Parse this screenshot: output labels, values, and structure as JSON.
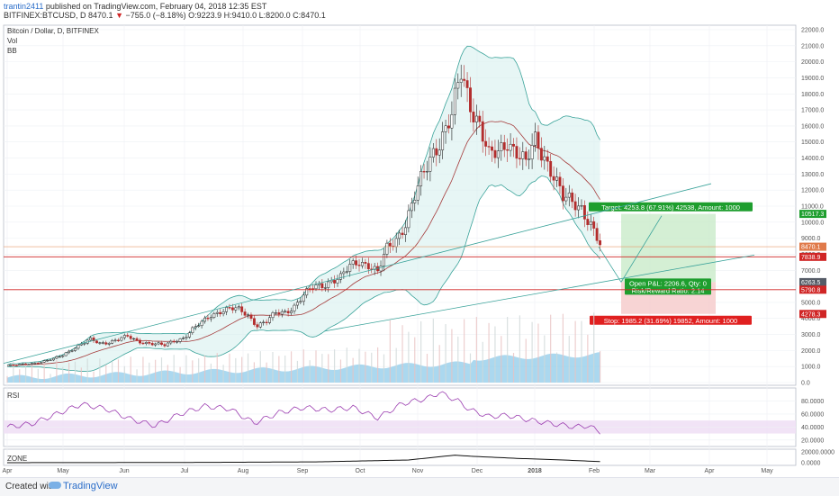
{
  "header": {
    "user": "trantin2411",
    "published": "published on TradingView.com, February 04, 2018 12:35 EST",
    "symbol": "BITFINEX:BTCUSD, D",
    "last": "8470.1",
    "arrow": "▼",
    "change": "−755.0 (−8.18%)",
    "ohlc": "O:9223.9 H:9410.0 L:8200.0 C:8470.1"
  },
  "legend": {
    "title": "Bitcoin / Dollar, D, BITFINEX",
    "vol": "Vol",
    "bb": "BB"
  },
  "footer": {
    "created": "Created with",
    "brand": "TradingView"
  },
  "colors": {
    "up": "#1e1e1e",
    "down": "#b32d2d",
    "bb_fill": "#d7f0ee",
    "bb_line": "#3aa39a",
    "ma": "#a53b3b",
    "rsi": "#9b3db0",
    "volume": "#88c8e8"
  },
  "chart_data": [
    {
      "type": "line",
      "title": "Bitcoin / Dollar, D, BITFINEX",
      "x_tick_labels": [
        "Apr",
        "May",
        "Jun",
        "Jul",
        "Aug",
        "Sep",
        "Oct",
        "Nov",
        "Dec",
        "2018",
        "Feb",
        "Mar",
        "Apr",
        "May"
      ],
      "y_tick_labels": [
        "0.0",
        "1000.0",
        "2000.0",
        "3000.0",
        "4000.0",
        "5000.0",
        "6000.0",
        "7000.0",
        "8000.0",
        "9000.0",
        "10000.0",
        "11000.0",
        "12000.0",
        "13000.0",
        "14000.0",
        "15000.0",
        "16000.0",
        "17000.0",
        "18000.0",
        "19000.0",
        "20000.0",
        "21000.0",
        "22000.0"
      ],
      "ylim": [
        0,
        22000
      ],
      "series": [
        {
          "values": [
            [
              0,
              1050
            ],
            [
              3,
              1080
            ],
            [
              6,
              1150
            ],
            [
              9,
              1230
            ],
            [
              12,
              1330
            ],
            [
              15,
              1460
            ],
            [
              18,
              1720
            ],
            [
              21,
              2100
            ],
            [
              24,
              2400
            ],
            [
              27,
              2650
            ],
            [
              30,
              2450
            ],
            [
              33,
              2550
            ],
            [
              36,
              2700
            ],
            [
              39,
              2850
            ],
            [
              42,
              2600
            ],
            [
              45,
              2500
            ],
            [
              48,
              2400
            ],
            [
              51,
              2300
            ],
            [
              54,
              2600
            ],
            [
              57,
              2800
            ],
            [
              60,
              3300
            ],
            [
              63,
              3700
            ],
            [
              66,
              4200
            ],
            [
              69,
              4500
            ],
            [
              72,
              4600
            ],
            [
              75,
              4500
            ],
            [
              78,
              4200
            ],
            [
              81,
              3600
            ],
            [
              84,
              3800
            ],
            [
              87,
              4300
            ],
            [
              90,
              4400
            ],
            [
              93,
              4800
            ],
            [
              96,
              5400
            ],
            [
              99,
              5900
            ],
            [
              102,
              6100
            ],
            [
              105,
              6400
            ],
            [
              108,
              6500
            ],
            [
              111,
              7200
            ],
            [
              114,
              7600
            ],
            [
              117,
              7400
            ],
            [
              120,
              6800
            ],
            [
              123,
              8300
            ],
            [
              126,
              9000
            ],
            [
              129,
              10000
            ],
            [
              132,
              11500
            ],
            [
              135,
              13000
            ],
            [
              138,
              14500
            ],
            [
              141,
              15500
            ],
            [
              144,
              16500
            ],
            [
              147,
              19200
            ],
            [
              150,
              17500
            ],
            [
              153,
              16200
            ],
            [
              156,
              14000
            ],
            [
              159,
              14200
            ],
            [
              162,
              15200
            ],
            [
              165,
              14500
            ],
            [
              168,
              13500
            ],
            [
              171,
              15000
            ],
            [
              174,
              14200
            ],
            [
              177,
              13000
            ],
            [
              180,
              11400
            ],
            [
              183,
              11200
            ],
            [
              186,
              11000
            ],
            [
              189,
              9900
            ],
            [
              192,
              8470
            ]
          ]
        },
        {
          "name": "BB",
          "values": [
            [
              0,
              1000
            ],
            [
              12,
              1200
            ],
            [
              24,
              1800
            ],
            [
              36,
              2400
            ],
            [
              48,
              2500
            ],
            [
              60,
              2600
            ],
            [
              72,
              3600
            ],
            [
              84,
              3900
            ],
            [
              96,
              4400
            ],
            [
              108,
              5500
            ],
            [
              120,
              6500
            ],
            [
              132,
              8000
            ],
            [
              141,
              10500
            ],
            [
              150,
              13500
            ],
            [
              159,
              15000
            ],
            [
              168,
              14800
            ],
            [
              177,
              13200
            ],
            [
              186,
              12000
            ],
            [
              192,
              11200
            ]
          ]
        }
      ],
      "price_labels": [
        "10517.3",
        "8470.1",
        "7838.9",
        "6263.5",
        "5790.8",
        "4278.3"
      ],
      "position": {
        "target": "Target: 4253.8 (67.91%) 42538, Amount: 1000",
        "pnl": "Open P&L: 2206.6, Qty: 0",
        "ratio": "Risk/Reward Ratio: 2.14",
        "stop": "Stop: 1985.2 (31.69%) 19852, Amount: 1000"
      }
    },
    {
      "type": "line",
      "title": "RSI",
      "y_tick_labels": [
        "80.0000",
        "60.0000",
        "40.0000",
        "20.0000"
      ],
      "ylim": [
        10,
        100
      ],
      "values": [
        [
          0,
          40
        ],
        [
          8,
          45
        ],
        [
          16,
          60
        ],
        [
          24,
          75
        ],
        [
          32,
          68
        ],
        [
          40,
          52
        ],
        [
          48,
          42
        ],
        [
          56,
          60
        ],
        [
          64,
          72
        ],
        [
          72,
          68
        ],
        [
          80,
          46
        ],
        [
          88,
          62
        ],
        [
          96,
          70
        ],
        [
          104,
          66
        ],
        [
          112,
          70
        ],
        [
          120,
          54
        ],
        [
          128,
          76
        ],
        [
          136,
          84
        ],
        [
          140,
          93
        ],
        [
          146,
          80
        ],
        [
          150,
          66
        ],
        [
          156,
          56
        ],
        [
          162,
          58
        ],
        [
          170,
          50
        ],
        [
          178,
          44
        ],
        [
          184,
          40
        ],
        [
          188,
          42
        ],
        [
          192,
          33
        ]
      ]
    },
    {
      "type": "line",
      "title": "ZONE",
      "y_tick_labels": [
        "20000.0000",
        "0.0000"
      ],
      "ylim": [
        -5000,
        25000
      ],
      "values": [
        [
          0,
          50
        ],
        [
          60,
          500
        ],
        [
          100,
          1500
        ],
        [
          130,
          5000
        ],
        [
          145,
          14000
        ],
        [
          150,
          12000
        ],
        [
          165,
          8000
        ],
        [
          180,
          5000
        ],
        [
          192,
          2000
        ]
      ]
    }
  ]
}
